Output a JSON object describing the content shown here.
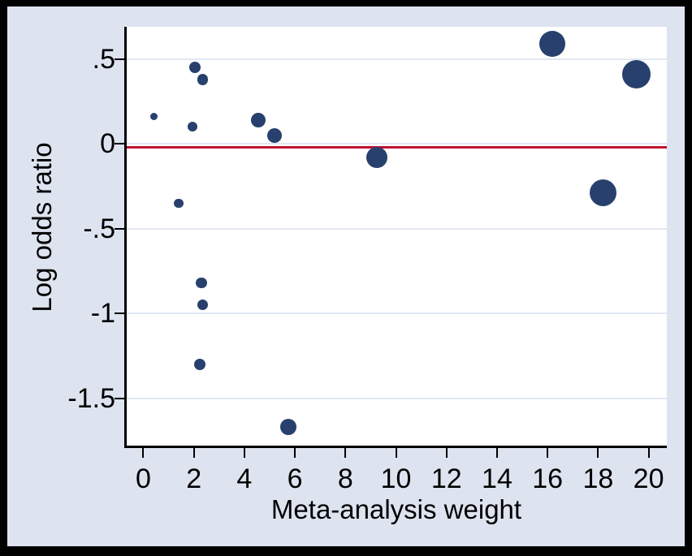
{
  "figure": {
    "frame_color": "#000000",
    "background_color": "#dee3f0"
  },
  "chart_data": {
    "type": "bubble",
    "title": "",
    "xlabel": "Meta-analysis weight",
    "ylabel": "Log odds ratio",
    "xlim": [
      -0.69,
      20.72
    ],
    "ylim": [
      -1.78,
      0.69
    ],
    "grid": "horizontal",
    "legend": "none",
    "x_ticks": [
      {
        "value": 0,
        "label": "0"
      },
      {
        "value": 2,
        "label": "2"
      },
      {
        "value": 4,
        "label": "4"
      },
      {
        "value": 6,
        "label": "6"
      },
      {
        "value": 8,
        "label": "8"
      },
      {
        "value": 10,
        "label": "10"
      },
      {
        "value": 12,
        "label": "12"
      },
      {
        "value": 14,
        "label": "14"
      },
      {
        "value": 16,
        "label": "16"
      },
      {
        "value": 18,
        "label": "18"
      },
      {
        "value": 20,
        "label": "20"
      }
    ],
    "y_ticks": [
      {
        "value": 0.5,
        "label": ".5"
      },
      {
        "value": 0,
        "label": "0"
      },
      {
        "value": -0.5,
        "label": "-.5"
      },
      {
        "value": -1,
        "label": "-1"
      },
      {
        "value": -1.5,
        "label": "-1.5"
      }
    ],
    "reference_line": {
      "y": -0.02,
      "color": "#c01031"
    },
    "points": [
      {
        "x": 0.43,
        "y": 0.16,
        "r": 4.5
      },
      {
        "x": 2.05,
        "y": 0.45,
        "r": 7
      },
      {
        "x": 2.35,
        "y": 0.38,
        "r": 6.8
      },
      {
        "x": 1.95,
        "y": 0.1,
        "r": 6
      },
      {
        "x": 4.55,
        "y": 0.14,
        "r": 9
      },
      {
        "x": 5.2,
        "y": 0.05,
        "r": 9
      },
      {
        "x": 16.2,
        "y": 0.59,
        "r": 16
      },
      {
        "x": 19.5,
        "y": 0.41,
        "r": 17.5
      },
      {
        "x": 9.25,
        "y": -0.08,
        "r": 13
      },
      {
        "x": 18.2,
        "y": -0.29,
        "r": 16.5
      },
      {
        "x": 1.4,
        "y": -0.35,
        "r": 5.6
      },
      {
        "x": 2.3,
        "y": -0.82,
        "r": 6.6
      },
      {
        "x": 2.35,
        "y": -0.95,
        "r": 6.6
      },
      {
        "x": 2.25,
        "y": -1.3,
        "r": 7
      },
      {
        "x": 5.75,
        "y": -1.67,
        "r": 10
      }
    ],
    "styles": {
      "point_color": "#27406d",
      "plot_background": "#ffffff",
      "grid_color": "#e2e7f3",
      "axis_color": "#000000",
      "tick_label_color": "#000000"
    }
  }
}
